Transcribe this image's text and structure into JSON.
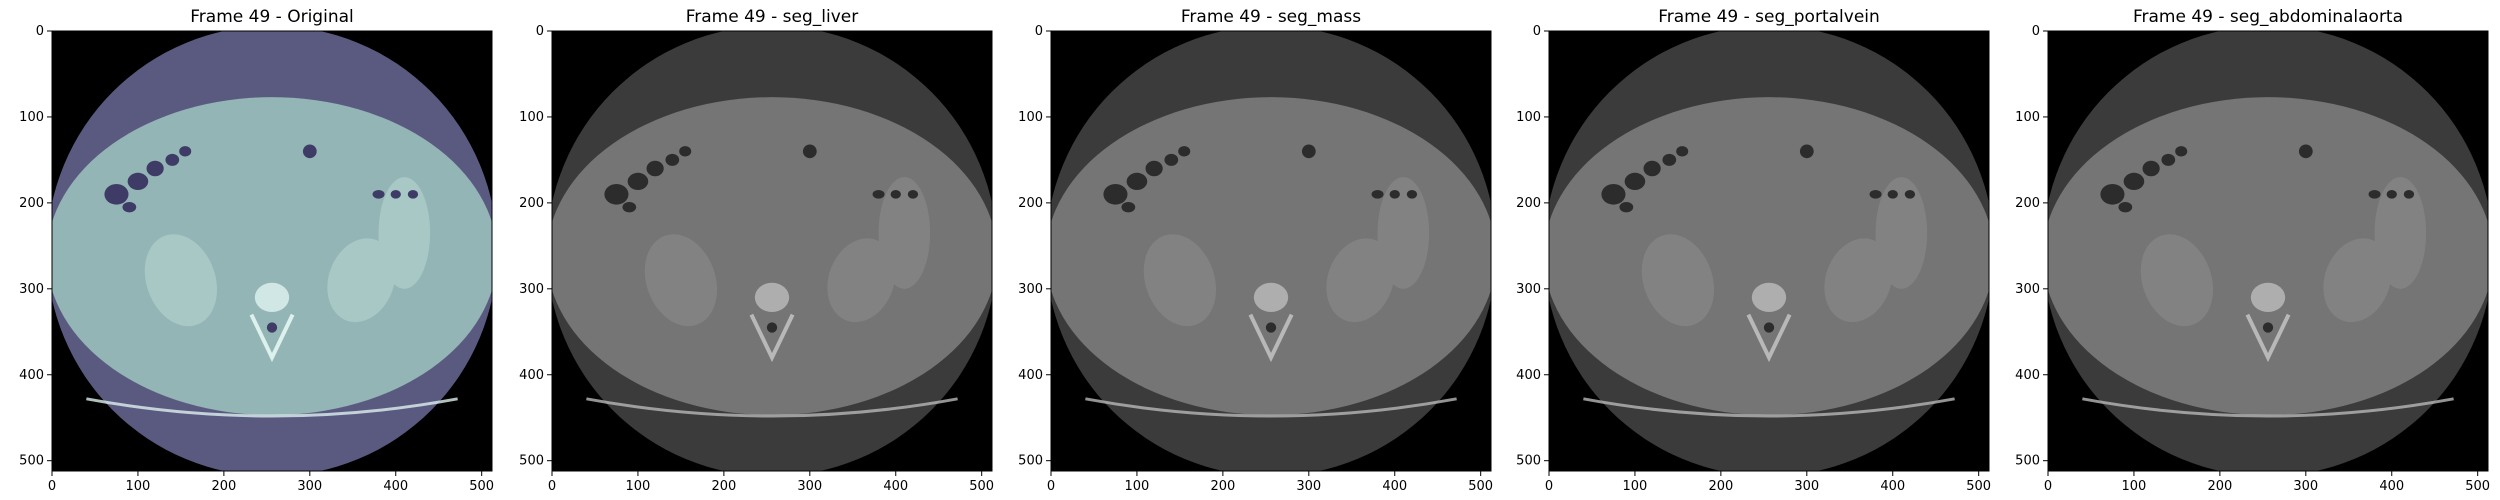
{
  "panels": [
    {
      "title": "Frame 49 - Original",
      "style": "original"
    },
    {
      "title": "Frame 49 - seg_liver",
      "style": "gray"
    },
    {
      "title": "Frame 49 - seg_mass",
      "style": "gray"
    },
    {
      "title": "Frame 49 - seg_portalvein",
      "style": "gray"
    },
    {
      "title": "Frame 49 - seg_abdominalaorta",
      "style": "gray"
    }
  ],
  "axes": {
    "x_ticks": [
      "0",
      "100",
      "200",
      "300",
      "400",
      "500"
    ],
    "y_ticks": [
      "0",
      "100",
      "200",
      "300",
      "400",
      "500"
    ],
    "range": [
      0,
      512
    ]
  },
  "colors": {
    "original_fov": "#5a5a80",
    "original_body": "#93b5b5",
    "original_organ": "#a8c8c6",
    "original_gas": "#3e3c66",
    "original_bone": "#dcf0ee",
    "gray_fov": "#3b3b3b",
    "gray_body": "#757575",
    "gray_organ": "#828282",
    "gray_gas": "#2c2c2c",
    "gray_bone": "#b8b8b8",
    "background": "#000000"
  }
}
